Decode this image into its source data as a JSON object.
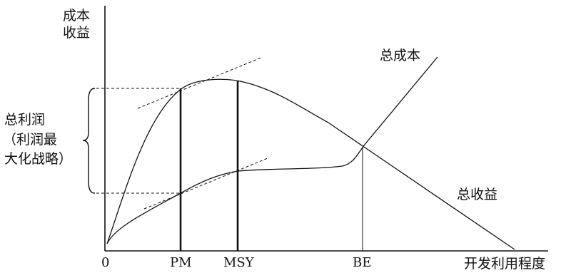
{
  "axes": {
    "y_label_line1": "成本",
    "y_label_line2": "收益",
    "x_label": "开发利用程度",
    "origin": "0"
  },
  "x_ticks": {
    "pm": "PM",
    "msy": "MSY",
    "be": "BE"
  },
  "curves": {
    "total_cost": "总成本",
    "total_revenue": "总收益"
  },
  "profit_note": {
    "line1": "总利润",
    "line2": "（利润最",
    "line3": "大化战略）"
  }
}
